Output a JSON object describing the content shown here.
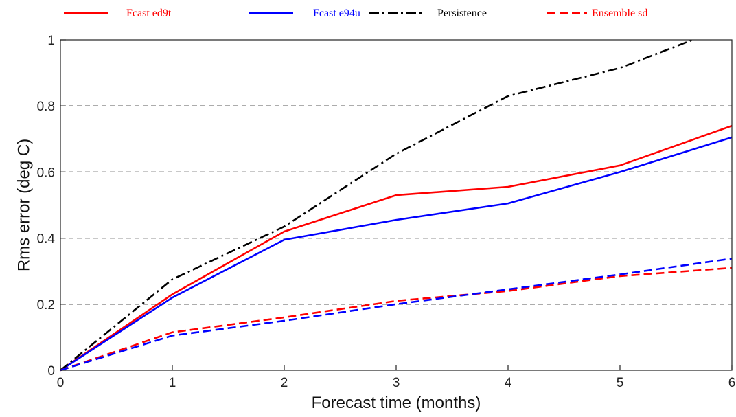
{
  "chart_data": {
    "type": "line",
    "xlabel": "Forecast time (months)",
    "ylabel": "Rms error (deg C)",
    "xlim": [
      0,
      6
    ],
    "ylim": [
      0,
      1
    ],
    "x_ticks": [
      0,
      1,
      2,
      3,
      4,
      5,
      6
    ],
    "y_ticks": [
      0,
      0.2,
      0.4,
      0.6,
      0.8,
      1
    ],
    "y_tick_labels": [
      "0",
      "0.2",
      "0.4",
      "0.6",
      "0.8",
      "1"
    ],
    "grid": "horizontal dashed at 0.2, 0.4, 0.6, 0.8",
    "legend_placement": "top",
    "series": [
      {
        "name": "Fcast ed9t",
        "color": "#ff0000",
        "style": "solid",
        "x": [
          0,
          1,
          2,
          3,
          4,
          5,
          6
        ],
        "y": [
          0,
          0.23,
          0.42,
          0.53,
          0.555,
          0.62,
          0.74
        ]
      },
      {
        "name": "Fcast e94u",
        "color": "#0000ff",
        "style": "solid",
        "x": [
          0,
          1,
          2,
          3,
          4,
          5,
          6
        ],
        "y": [
          0,
          0.22,
          0.395,
          0.455,
          0.505,
          0.6,
          0.705
        ]
      },
      {
        "name": "Persistence",
        "color": "#000000",
        "style": "dashdot",
        "x": [
          0,
          1,
          2,
          3,
          4,
          5,
          5.65
        ],
        "y": [
          0,
          0.275,
          0.435,
          0.655,
          0.83,
          0.915,
          1.0
        ]
      },
      {
        "name": "Ensemble sd",
        "color": "#ff0000",
        "style": "dashed",
        "x": [
          0,
          1,
          2,
          3,
          4,
          5,
          6
        ],
        "y": [
          0,
          0.115,
          0.16,
          0.21,
          0.24,
          0.285,
          0.31
        ]
      },
      {
        "name": "",
        "color": "#0000ff",
        "style": "dashed",
        "x": [
          0,
          1,
          2,
          3,
          4,
          5,
          6
        ],
        "y": [
          0,
          0.105,
          0.15,
          0.2,
          0.245,
          0.29,
          0.338
        ]
      }
    ]
  }
}
